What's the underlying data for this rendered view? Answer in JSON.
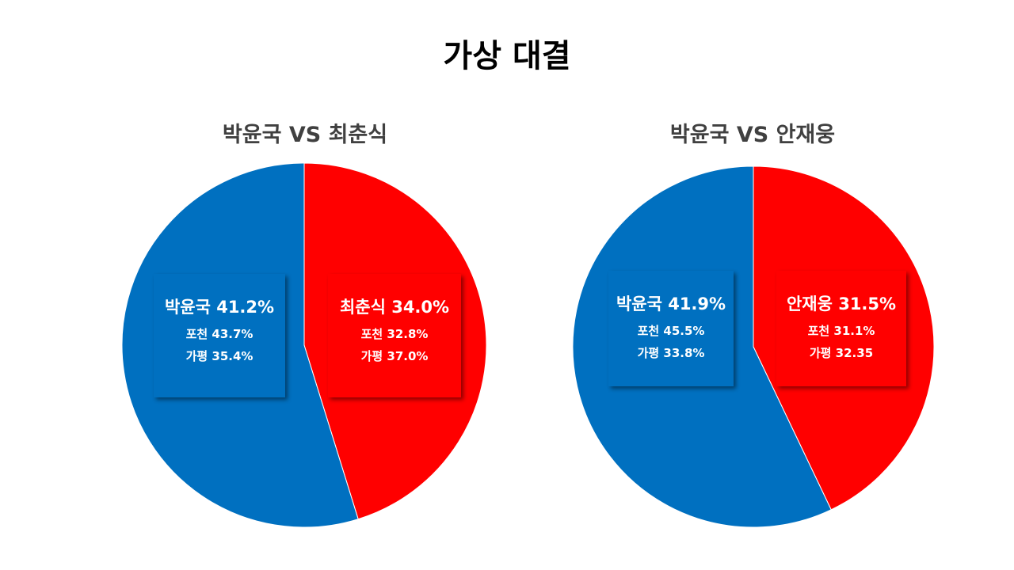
{
  "title": "가상 대결",
  "colors": {
    "blue": "#0070C0",
    "red": "#FF0000"
  },
  "chart_data": [
    {
      "type": "pie",
      "title": "박윤국 VS 최춘식",
      "slices": [
        {
          "name": "박윤국",
          "value": 41.2,
          "color": "#0070C0"
        },
        {
          "name": "최춘식",
          "value": 34.0,
          "color": "#FF0000"
        }
      ],
      "labels": [
        {
          "headline": "박윤국 41.2%",
          "lines": [
            "포천 43.7%",
            "가평 35.4%"
          ]
        },
        {
          "headline": "최춘식 34.0%",
          "lines": [
            "포천 32.8%",
            "가평 37.0%"
          ]
        }
      ]
    },
    {
      "type": "pie",
      "title": "박윤국 VS 안재웅",
      "slices": [
        {
          "name": "박윤국",
          "value": 41.9,
          "color": "#0070C0"
        },
        {
          "name": "안재웅",
          "value": 31.5,
          "color": "#FF0000"
        }
      ],
      "labels": [
        {
          "headline": "박윤국 41.9%",
          "lines": [
            "포천 45.5%",
            "가평 33.8%"
          ]
        },
        {
          "headline": "안재웅 31.5%",
          "lines": [
            "포천 31.1%",
            "가평 32.35"
          ]
        }
      ]
    }
  ]
}
